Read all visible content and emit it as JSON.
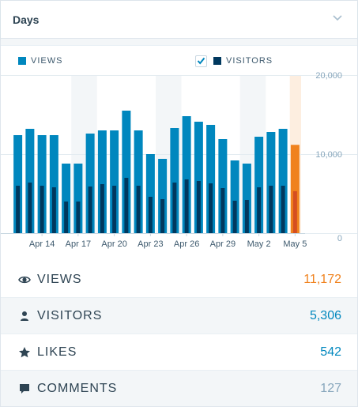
{
  "header": {
    "period_label": "Days"
  },
  "legend": {
    "views": {
      "label": "VIEWS",
      "color": "#0087be"
    },
    "visitors": {
      "label": "VISITORS",
      "color": "#00385e",
      "checked": true
    }
  },
  "chart_data": {
    "type": "bar",
    "categories": [
      "Apr 12",
      "Apr 13",
      "Apr 14",
      "Apr 15",
      "Apr 16",
      "Apr 17",
      "Apr 18",
      "Apr 19",
      "Apr 20",
      "Apr 21",
      "Apr 22",
      "Apr 23",
      "Apr 24",
      "Apr 25",
      "Apr 26",
      "Apr 27",
      "Apr 28",
      "Apr 29",
      "Apr 30",
      "May 1",
      "May 2",
      "May 3",
      "May 4",
      "May 5"
    ],
    "x_tick_labels": [
      "Apr 14",
      "Apr 17",
      "Apr 20",
      "Apr 23",
      "Apr 26",
      "Apr 29",
      "May 2",
      "May 5"
    ],
    "series": [
      {
        "name": "VIEWS",
        "color": "#0087be",
        "highlight_color": "#f0821e",
        "values": [
          12400,
          13200,
          12400,
          12400,
          8800,
          8800,
          12600,
          13000,
          13000,
          15500,
          13000,
          10000,
          9400,
          13300,
          14800,
          14100,
          13700,
          11900,
          9200,
          8800,
          12200,
          12800,
          13200,
          11172
        ]
      },
      {
        "name": "VISITORS",
        "color": "#00385e",
        "highlight_color": "#d54e21",
        "values": [
          6000,
          6400,
          6000,
          5800,
          4000,
          4000,
          5900,
          6200,
          6000,
          7000,
          6000,
          4600,
          4300,
          6400,
          6800,
          6600,
          6300,
          5700,
          4100,
          4200,
          5800,
          6000,
          6000,
          5306
        ]
      }
    ],
    "weekend_indices": [
      5,
      12,
      19
    ],
    "selected_index": 23,
    "y_ticks": [
      0,
      10000,
      20000
    ],
    "y_tick_labels": [
      "0",
      "10,000",
      "20,000"
    ],
    "ylim": [
      0,
      20000
    ]
  },
  "stats": [
    {
      "label": "VIEWS",
      "value": "11,172",
      "icon": "eye-icon",
      "value_color": "#f0821e"
    },
    {
      "label": "VISITORS",
      "value": "5,306",
      "icon": "person-icon",
      "value_color": "#0087be"
    },
    {
      "label": "LIKES",
      "value": "542",
      "icon": "star-icon",
      "value_color": "#0087be"
    },
    {
      "label": "COMMENTS",
      "value": "127",
      "icon": "comment-icon",
      "value_color": "#87a6bc"
    }
  ]
}
